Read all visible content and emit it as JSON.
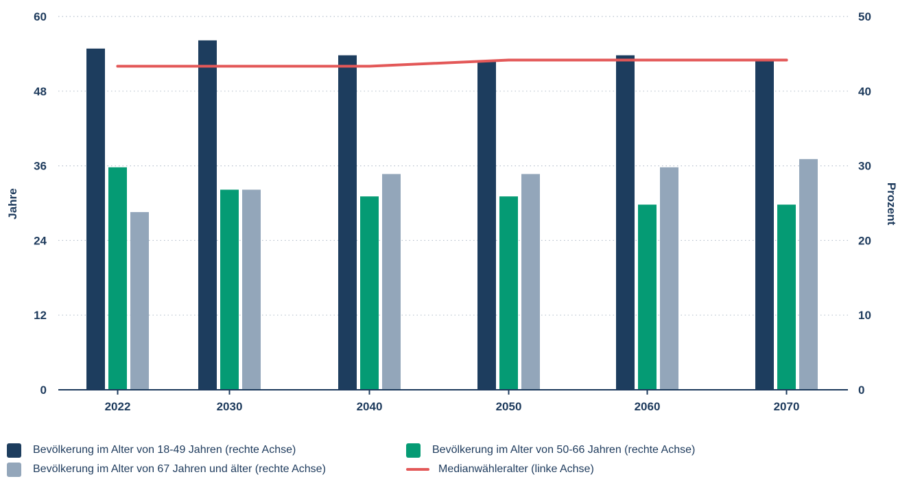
{
  "chart_data": {
    "type": "bar",
    "categories": [
      "2022",
      "2030",
      "2040",
      "2050",
      "2060",
      "2070"
    ],
    "left_axis": {
      "label": "Jahre",
      "min": 0,
      "max": 60,
      "ticks": [
        0,
        12,
        24,
        36,
        48,
        60
      ]
    },
    "right_axis": {
      "label": "Prozent",
      "min": 0,
      "max": 50,
      "ticks": [
        0,
        10,
        20,
        30,
        40,
        50
      ]
    },
    "grid": "dotted horizontal",
    "legend_position": "bottom",
    "series": [
      {
        "name": "Bevölkerung im Alter von 18-49 Jahren (rechte Achse)",
        "type": "bar",
        "axis": "right",
        "color": "#1d3d5e",
        "values": [
          45.7,
          46.8,
          44.8,
          44.0,
          44.8,
          44.0
        ]
      },
      {
        "name": "Bevölkerung im Alter von 50-66 Jahren (rechte Achse)",
        "type": "bar",
        "axis": "right",
        "color": "#059b74",
        "values": [
          29.8,
          26.8,
          25.9,
          25.9,
          24.8,
          24.8
        ]
      },
      {
        "name": "Bevölkerung im Alter von 67 Jahren und älter (rechte Achse)",
        "type": "bar",
        "axis": "right",
        "color": "#93a6ba",
        "values": [
          23.8,
          26.8,
          28.9,
          28.9,
          29.8,
          30.9
        ]
      },
      {
        "name": "Medianwähleralter (linke Achse)",
        "type": "line",
        "axis": "left",
        "color": "#e35858",
        "values": [
          52,
          52,
          52,
          53,
          53,
          53
        ]
      }
    ]
  }
}
